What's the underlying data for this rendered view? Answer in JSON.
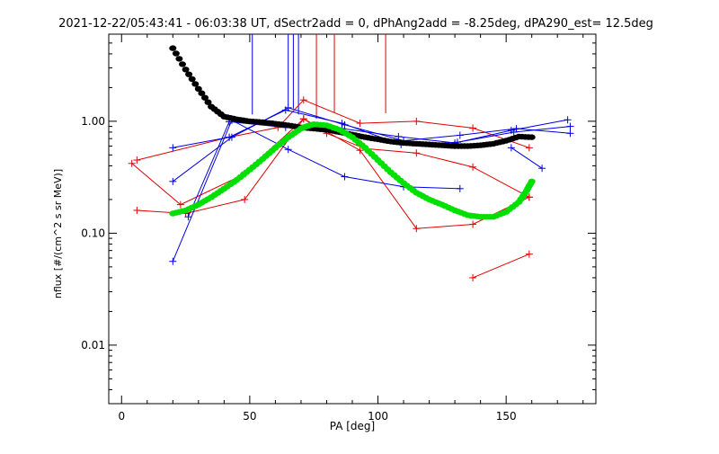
{
  "chart_data": {
    "type": "scatter",
    "title": "2021-12-22/05:43:41 - 06:03:38 UT, dSectr2add = 0, dPhAng2add = -8.25deg, dPA290_est=  12.5deg",
    "xlabel": "PA [deg]",
    "ylabel": "nflux [#/(cm^2 s sr MeV)]",
    "xlim": [
      -5,
      185
    ],
    "ylim": [
      0.003,
      6
    ],
    "y_scale": "log",
    "grid": false,
    "x_ticks": [
      0,
      50,
      100,
      150
    ],
    "y_ticks": [
      0.01,
      0.1,
      1.0
    ],
    "y_tick_labels": [
      "0.01",
      "0.10",
      "1.00"
    ],
    "colors": {
      "red": "#e00000",
      "blue": "#0000e0",
      "black": "#000000",
      "green": "#00e000"
    },
    "series": [
      {
        "color": "red",
        "style": "line-plus",
        "x": [
          4,
          23,
          47,
          71,
          80,
          95,
          115,
          137,
          159
        ],
        "y": [
          0.42,
          0.18,
          0.33,
          1.05,
          0.78,
          0.57,
          0.52,
          0.39,
          0.21
        ]
      },
      {
        "color": "red",
        "style": "line-plus",
        "x": [
          6,
          42,
          61,
          71,
          93,
          115,
          137,
          159
        ],
        "y": [
          0.45,
          0.72,
          0.88,
          1.55,
          0.96,
          1.0,
          0.87,
          0.58
        ]
      },
      {
        "color": "red",
        "style": "line-plus",
        "x": [
          6,
          25,
          48,
          71,
          93,
          115,
          137,
          159
        ],
        "y": [
          0.16,
          0.15,
          0.2,
          1.05,
          0.55,
          0.11,
          0.12,
          0.21
        ]
      },
      {
        "color": "red",
        "style": "line-plus",
        "x": [
          137,
          159
        ],
        "y": [
          0.04,
          0.065
        ]
      },
      {
        "color": "blue",
        "style": "line-plus",
        "x": [
          20,
          43,
          65,
          87,
          110,
          132,
          154,
          175
        ],
        "y": [
          0.29,
          0.72,
          1.32,
          0.93,
          0.67,
          0.75,
          0.86,
          0.78
        ]
      },
      {
        "color": "blue",
        "style": "line-plus",
        "x": [
          20,
          43,
          65,
          87,
          110,
          132
        ],
        "y": [
          0.056,
          1.02,
          0.56,
          0.32,
          0.26,
          0.25
        ]
      },
      {
        "color": "blue",
        "style": "line-plus",
        "x": [
          20,
          42,
          64,
          86,
          109,
          131,
          153,
          175
        ],
        "y": [
          0.58,
          0.72,
          1.26,
          0.96,
          0.62,
          0.65,
          0.8,
          0.9
        ]
      },
      {
        "color": "blue",
        "style": "line-plus",
        "x": [
          26,
          42,
          64,
          86,
          108,
          130,
          152,
          174
        ],
        "y": [
          0.14,
          0.99,
          0.88,
          0.86,
          0.73,
          0.64,
          0.83,
          1.03
        ]
      },
      {
        "color": "blue",
        "style": "line-plus",
        "x": [
          152,
          164
        ],
        "y": [
          0.58,
          0.38
        ]
      },
      {
        "color": "black",
        "style": "thick-dots",
        "x": [
          20,
          25,
          30,
          35,
          40,
          45,
          50,
          55,
          60,
          65,
          70,
          75,
          80,
          85,
          90,
          95,
          100,
          105,
          110,
          115,
          120,
          125,
          130,
          135,
          140,
          145,
          150,
          155,
          160
        ],
        "y": [
          4.5,
          2.9,
          1.95,
          1.35,
          1.1,
          1.04,
          1.0,
          0.98,
          0.95,
          0.92,
          0.88,
          0.86,
          0.84,
          0.8,
          0.76,
          0.72,
          0.69,
          0.66,
          0.64,
          0.63,
          0.62,
          0.61,
          0.6,
          0.6,
          0.61,
          0.63,
          0.67,
          0.73,
          0.72
        ]
      },
      {
        "color": "green",
        "style": "thick-dots",
        "x": [
          20,
          25,
          30,
          35,
          40,
          45,
          50,
          55,
          60,
          65,
          70,
          72,
          75,
          80,
          85,
          90,
          95,
          100,
          105,
          110,
          115,
          120,
          125,
          130,
          135,
          140,
          145,
          150,
          155,
          158,
          160
        ],
        "y": [
          0.15,
          0.16,
          0.18,
          0.21,
          0.25,
          0.3,
          0.37,
          0.46,
          0.58,
          0.72,
          0.86,
          0.9,
          0.94,
          0.92,
          0.84,
          0.72,
          0.58,
          0.45,
          0.35,
          0.28,
          0.23,
          0.2,
          0.18,
          0.16,
          0.145,
          0.14,
          0.14,
          0.155,
          0.19,
          0.24,
          0.29
        ]
      }
    ],
    "vertical_spikes": [
      {
        "color": "blue",
        "x": 51,
        "y_top": 6,
        "y_bottom": 1.15
      },
      {
        "color": "blue",
        "x": 65,
        "y_top": 6,
        "y_bottom": 1.4
      },
      {
        "color": "blue",
        "x": 67,
        "y_top": 6,
        "y_bottom": 1.3
      },
      {
        "color": "blue",
        "x": 69,
        "y_top": 6,
        "y_bottom": 1.15
      },
      {
        "color": "red",
        "x": 76,
        "y_top": 6,
        "y_bottom": 1.05
      },
      {
        "color": "red",
        "x": 83,
        "y_top": 6,
        "y_bottom": 1.2
      },
      {
        "color": "red",
        "x": 103,
        "y_top": 6,
        "y_bottom": 1.18
      }
    ]
  }
}
